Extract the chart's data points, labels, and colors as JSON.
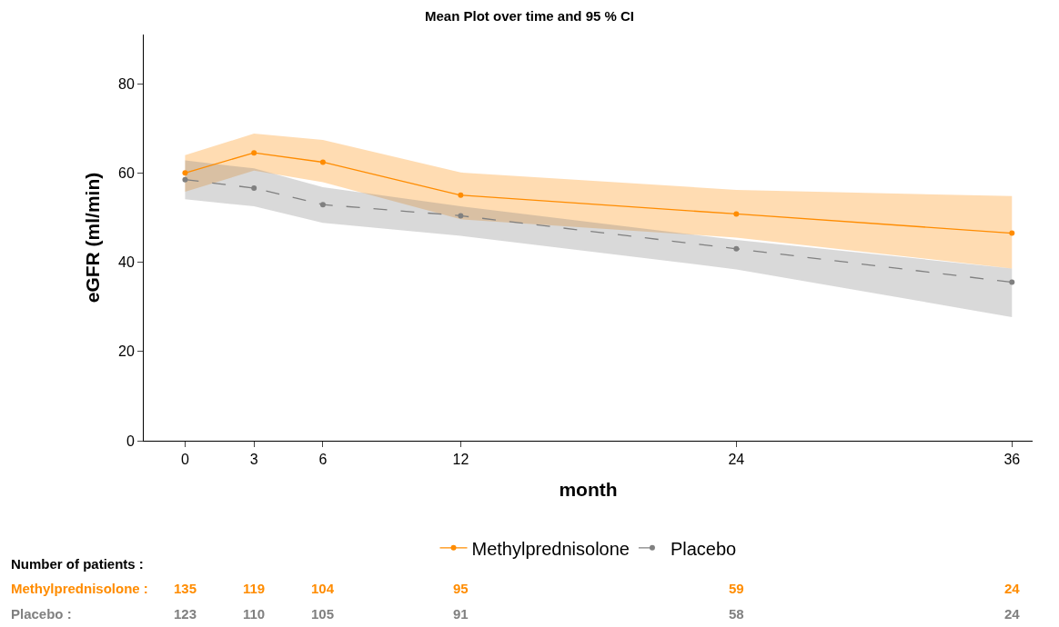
{
  "chart_data": {
    "type": "line",
    "title": "Mean Plot over time and 95 % CI",
    "xlabel": "month",
    "ylabel": "eGFR (ml/min)",
    "x": [
      0,
      3,
      6,
      12,
      24,
      36
    ],
    "series": [
      {
        "name": "Methylprednisolone",
        "color": "#ff8c00",
        "line_style": "solid",
        "values": [
          60,
          64.5,
          62.4,
          55,
          50.8,
          46.5
        ],
        "lower": [
          55.8,
          60.5,
          57.9,
          49.6,
          45.5,
          38.6
        ],
        "upper": [
          64,
          68.8,
          67.4,
          60.1,
          56.2,
          54.8
        ]
      },
      {
        "name": "Placebo",
        "color": "#808080",
        "line_style": "dashed",
        "values": [
          58.5,
          56.6,
          52.9,
          50.4,
          43,
          35.5
        ],
        "lower": [
          54.1,
          52.5,
          48.8,
          45.9,
          38.4,
          27.7
        ],
        "upper": [
          62.8,
          61,
          56.8,
          52.5,
          45,
          38.6
        ]
      }
    ],
    "xlim": [
      -1.8,
      36.9
    ],
    "xticks": [
      0,
      3,
      6,
      12,
      24,
      36
    ],
    "ylim": [
      0,
      91
    ],
    "yticks": [
      0,
      20,
      40,
      60,
      80
    ],
    "grid": false,
    "legend": "bottom",
    "marker": "circle",
    "annotations": [
      "Number of patients :",
      "Methylprednisolone :",
      "135",
      "119",
      "104",
      "95",
      "59",
      "24",
      "Placebo :",
      "123",
      "110",
      "105",
      "91",
      "58",
      "24"
    ]
  }
}
